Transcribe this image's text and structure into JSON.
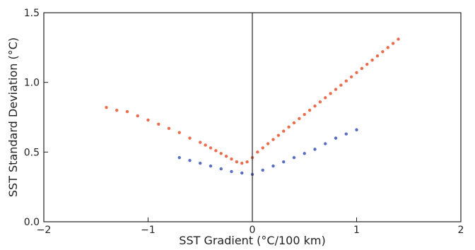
{
  "chart_data": {
    "type": "scatter",
    "title": "",
    "xlabel": "SST Gradient (°C/100 km)",
    "ylabel": "SST Standard Deviation (°C)",
    "xlim": [
      -2,
      2
    ],
    "ylim": [
      0,
      1.5
    ],
    "x_ticks": [
      -2,
      -1,
      0,
      1,
      2
    ],
    "y_ticks": [
      0,
      0.5,
      1.0,
      1.5
    ],
    "x_tick_labels": [
      "−2",
      "−1",
      "0",
      "1",
      "2"
    ],
    "y_tick_labels": [
      "0.0",
      "0.5",
      "1.0",
      "1.5"
    ],
    "vertical_reference_line_x": 0,
    "grid": false,
    "series": [
      {
        "color": "#e8542e",
        "x": [
          -1.4,
          -1.3,
          -1.2,
          -1.1,
          -1.0,
          -0.9,
          -0.8,
          -0.7,
          -0.6,
          -0.5,
          -0.45,
          -0.4,
          -0.35,
          -0.3,
          -0.25,
          -0.2,
          -0.15,
          -0.1,
          -0.05,
          0.0,
          0.05,
          0.1,
          0.15,
          0.2,
          0.25,
          0.3,
          0.35,
          0.4,
          0.45,
          0.5,
          0.55,
          0.6,
          0.65,
          0.7,
          0.75,
          0.8,
          0.85,
          0.9,
          0.95,
          1.0,
          1.05,
          1.1,
          1.15,
          1.2,
          1.25,
          1.3,
          1.35,
          1.4
        ],
        "y": [
          0.82,
          0.8,
          0.79,
          0.76,
          0.73,
          0.7,
          0.67,
          0.64,
          0.6,
          0.57,
          0.55,
          0.53,
          0.51,
          0.49,
          0.47,
          0.45,
          0.43,
          0.42,
          0.43,
          0.46,
          0.5,
          0.53,
          0.56,
          0.59,
          0.62,
          0.65,
          0.68,
          0.71,
          0.74,
          0.77,
          0.8,
          0.83,
          0.86,
          0.89,
          0.92,
          0.95,
          0.98,
          1.01,
          1.04,
          1.07,
          1.1,
          1.13,
          1.16,
          1.19,
          1.22,
          1.25,
          1.28,
          1.31
        ]
      },
      {
        "color": "#3b55b5",
        "x": [
          -0.7,
          -0.6,
          -0.5,
          -0.4,
          -0.3,
          -0.2,
          -0.1,
          0.0,
          0.1,
          0.2,
          0.3,
          0.4,
          0.5,
          0.6,
          0.7,
          0.8,
          0.9,
          1.0
        ],
        "y": [
          0.46,
          0.44,
          0.42,
          0.4,
          0.38,
          0.36,
          0.35,
          0.34,
          0.37,
          0.4,
          0.43,
          0.46,
          0.49,
          0.52,
          0.56,
          0.6,
          0.63,
          0.66
        ]
      }
    ]
  }
}
